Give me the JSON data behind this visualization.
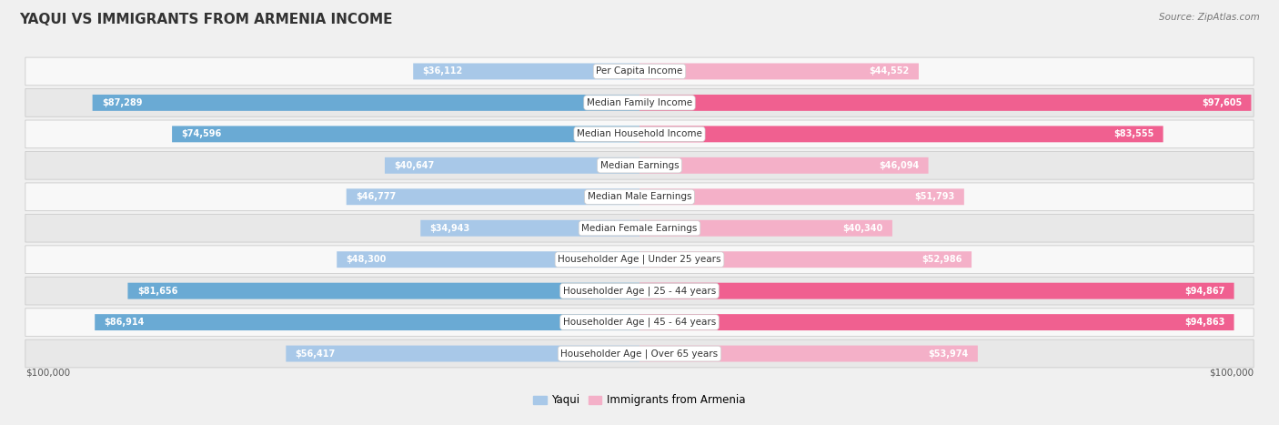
{
  "title": "YAQUI VS IMMIGRANTS FROM ARMENIA INCOME",
  "source": "Source: ZipAtlas.com",
  "categories": [
    "Per Capita Income",
    "Median Family Income",
    "Median Household Income",
    "Median Earnings",
    "Median Male Earnings",
    "Median Female Earnings",
    "Householder Age | Under 25 years",
    "Householder Age | 25 - 44 years",
    "Householder Age | 45 - 64 years",
    "Householder Age | Over 65 years"
  ],
  "yaqui_values": [
    36112,
    87289,
    74596,
    40647,
    46777,
    34943,
    48300,
    81656,
    86914,
    56417
  ],
  "armenia_values": [
    44552,
    97605,
    83555,
    46094,
    51793,
    40340,
    52986,
    94867,
    94863,
    53974
  ],
  "yaqui_labels": [
    "$36,112",
    "$87,289",
    "$74,596",
    "$40,647",
    "$46,777",
    "$34,943",
    "$48,300",
    "$81,656",
    "$86,914",
    "$56,417"
  ],
  "armenia_labels": [
    "$44,552",
    "$97,605",
    "$83,555",
    "$46,094",
    "$51,793",
    "$40,340",
    "$52,986",
    "$94,867",
    "$94,863",
    "$53,974"
  ],
  "yaqui_color_light": "#a8c8e8",
  "yaqui_color_dark": "#6aaad4",
  "armenia_color_light": "#f4b0c8",
  "armenia_color_dark": "#f06090",
  "yaqui_threshold": 60000,
  "armenia_threshold": 60000,
  "max_value": 100000,
  "bg_color": "#f0f0f0",
  "row_color_even": "#f8f8f8",
  "row_color_odd": "#e8e8e8",
  "row_border_color": "#cccccc",
  "title_fontsize": 11,
  "label_fontsize": 7.5,
  "value_fontsize": 7,
  "legend_fontsize": 8.5,
  "axis_label_fontsize": 7.5
}
